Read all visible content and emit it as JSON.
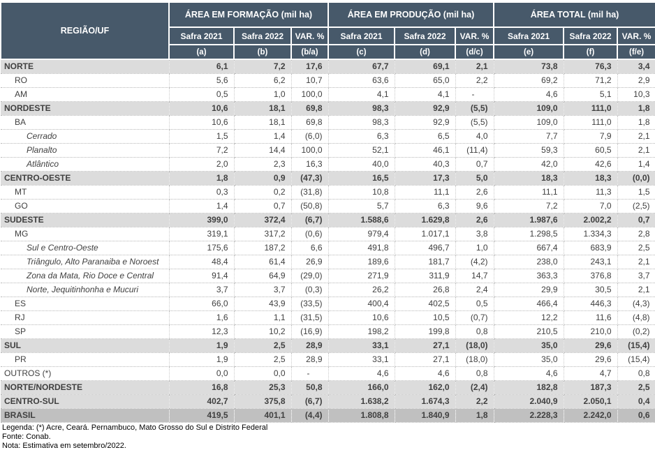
{
  "header": {
    "region_col": "REGIÃO/UF",
    "groups": [
      "ÁREA EM FORMAÇÃO (mil ha)",
      "ÁREA EM PRODUÇÃO (mil ha)",
      "ÁREA TOTAL (mil ha)"
    ],
    "safra_cols": [
      "Safra 2021",
      "Safra 2022",
      "VAR. %",
      "Safra 2021",
      "Safra 2022",
      "VAR. %",
      "Safra 2021",
      "Safra 2022",
      "VAR. %"
    ],
    "letter_cols": [
      "(a)",
      "(b)",
      "(b/a)",
      "(c)",
      "(d)",
      "(d/c)",
      "(e)",
      "(f)",
      "(f/e)"
    ]
  },
  "rows": [
    {
      "label": "NORTE",
      "style": "region",
      "values": [
        "6,1",
        "7,2",
        "17,6",
        "67,7",
        "69,1",
        "2,1",
        "73,8",
        "76,3",
        "3,4"
      ]
    },
    {
      "label": "RO",
      "style": "uf",
      "values": [
        "5,6",
        "6,2",
        "10,7",
        "63,6",
        "65,0",
        "2,2",
        "69,2",
        "71,2",
        "2,9"
      ]
    },
    {
      "label": "AM",
      "style": "uf",
      "values": [
        "0,5",
        "1,0",
        "100,0",
        "4,1",
        "4,1",
        "-",
        "4,6",
        "5,1",
        "10,3"
      ]
    },
    {
      "label": "NORDESTE",
      "style": "region",
      "values": [
        "10,6",
        "18,1",
        "69,8",
        "98,3",
        "92,9",
        "(5,5)",
        "109,0",
        "111,0",
        "1,8"
      ]
    },
    {
      "label": "BA",
      "style": "uf",
      "values": [
        "10,6",
        "18,1",
        "69,8",
        "98,3",
        "92,9",
        "(5,5)",
        "109,0",
        "111,0",
        "1,8"
      ]
    },
    {
      "label": "Cerrado",
      "style": "sub",
      "values": [
        "1,5",
        "1,4",
        "(6,0)",
        "6,3",
        "6,5",
        "4,0",
        "7,7",
        "7,9",
        "2,1"
      ]
    },
    {
      "label": "Planalto",
      "style": "sub",
      "values": [
        "7,2",
        "14,4",
        "100,0",
        "52,1",
        "46,1",
        "(11,4)",
        "59,3",
        "60,5",
        "2,1"
      ]
    },
    {
      "label": "Atlântico",
      "style": "sub",
      "values": [
        "2,0",
        "2,3",
        "16,3",
        "40,0",
        "40,3",
        "0,7",
        "42,0",
        "42,6",
        "1,4"
      ]
    },
    {
      "label": "CENTRO-OESTE",
      "style": "region",
      "values": [
        "1,8",
        "0,9",
        "(47,3)",
        "16,5",
        "17,3",
        "5,0",
        "18,3",
        "18,3",
        "(0,0)"
      ]
    },
    {
      "label": "MT",
      "style": "uf",
      "values": [
        "0,3",
        "0,2",
        "(31,8)",
        "10,8",
        "11,1",
        "2,6",
        "11,1",
        "11,3",
        "1,5"
      ]
    },
    {
      "label": "GO",
      "style": "uf",
      "values": [
        "1,4",
        "0,7",
        "(50,8)",
        "5,7",
        "6,3",
        "9,6",
        "7,2",
        "7,0",
        "(2,5)"
      ]
    },
    {
      "label": "SUDESTE",
      "style": "region",
      "values": [
        "399,0",
        "372,4",
        "(6,7)",
        "1.588,6",
        "1.629,8",
        "2,6",
        "1.987,6",
        "2.002,2",
        "0,7"
      ]
    },
    {
      "label": "MG",
      "style": "uf",
      "values": [
        "319,1",
        "317,2",
        "(0,6)",
        "979,4",
        "1.017,1",
        "3,8",
        "1.298,5",
        "1.334,3",
        "2,8"
      ]
    },
    {
      "label": "Sul e Centro-Oeste",
      "style": "sub",
      "values": [
        "175,6",
        "187,2",
        "6,6",
        "491,8",
        "496,7",
        "1,0",
        "667,4",
        "683,9",
        "2,5"
      ]
    },
    {
      "label": "Triângulo, Alto Paranaiba e Noroest",
      "style": "sub",
      "values": [
        "48,4",
        "61,4",
        "26,9",
        "189,6",
        "181,7",
        "(4,2)",
        "238,0",
        "243,1",
        "2,1"
      ]
    },
    {
      "label": "Zona da Mata, Rio Doce e Central",
      "style": "sub",
      "values": [
        "91,4",
        "64,9",
        "(29,0)",
        "271,9",
        "311,9",
        "14,7",
        "363,3",
        "376,8",
        "3,7"
      ]
    },
    {
      "label": "Norte, Jequitinhonha e Mucuri",
      "style": "sub",
      "values": [
        "3,7",
        "3,7",
        "(0,3)",
        "26,2",
        "26,8",
        "2,4",
        "29,9",
        "30,5",
        "2,1"
      ]
    },
    {
      "label": "ES",
      "style": "uf",
      "values": [
        "66,0",
        "43,9",
        "(33,5)",
        "400,4",
        "402,5",
        "0,5",
        "466,4",
        "446,3",
        "(4,3)"
      ]
    },
    {
      "label": "RJ",
      "style": "uf",
      "values": [
        "1,6",
        "1,1",
        "(31,5)",
        "10,6",
        "10,5",
        "(0,7)",
        "12,2",
        "11,6",
        "(4,8)"
      ]
    },
    {
      "label": "SP",
      "style": "uf",
      "values": [
        "12,3",
        "10,2",
        "(16,9)",
        "198,2",
        "199,8",
        "0,8",
        "210,5",
        "210,0",
        "(0,2)"
      ]
    },
    {
      "label": "SUL",
      "style": "region",
      "values": [
        "1,9",
        "2,5",
        "28,9",
        "33,1",
        "27,1",
        "(18,0)",
        "35,0",
        "29,6",
        "(15,4)"
      ]
    },
    {
      "label": "PR",
      "style": "uf",
      "values": [
        "1,9",
        "2,5",
        "28,9",
        "33,1",
        "27,1",
        "(18,0)",
        "35,0",
        "29,6",
        "(15,4)"
      ]
    },
    {
      "label": "OUTROS (*)",
      "style": "plain",
      "values": [
        "0,0",
        "0,0",
        "-",
        "4,6",
        "4,6",
        "0,8",
        "4,6",
        "4,7",
        "0,8"
      ]
    },
    {
      "label": "NORTE/NORDESTE",
      "style": "total",
      "values": [
        "16,8",
        "25,3",
        "50,8",
        "166,0",
        "162,0",
        "(2,4)",
        "182,8",
        "187,3",
        "2,5"
      ]
    },
    {
      "label": "CENTRO-SUL",
      "style": "total",
      "values": [
        "402,7",
        "375,8",
        "(6,7)",
        "1.638,2",
        "1.674,3",
        "2,2",
        "2.040,9",
        "2.050,1",
        "0,4"
      ]
    },
    {
      "label": "BRASIL",
      "style": "brasil",
      "values": [
        "419,5",
        "401,1",
        "(4,4)",
        "1.808,8",
        "1.840,9",
        "1,8",
        "2.228,3",
        "2.242,0",
        "0,6"
      ]
    }
  ],
  "footer": {
    "legend": "Legenda: (*) Acre, Ceará. Pernambuco, Mato Grosso do Sul e Distrito Federal",
    "source": "Fonte: Conab.",
    "note": "Nota: Estimativa em setembro/2022."
  },
  "colors": {
    "header_bg": "#47596A",
    "header_text": "#FFFFFF",
    "region_row_bg": "#DCDCDC",
    "brasil_row_bg": "#C0C0C0",
    "body_text": "#404040"
  }
}
